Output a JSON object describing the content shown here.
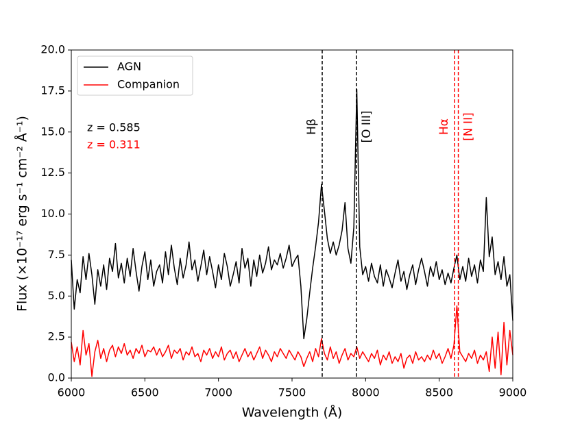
{
  "chart_data": {
    "type": "line",
    "xlabel": "Wavelength (Å)",
    "ylabel": "Flux (×10⁻¹⁷ erg s⁻¹ cm⁻² Å⁻¹)",
    "xlim": [
      6000,
      9000
    ],
    "ylim": [
      0,
      20
    ],
    "xticks": [
      6000,
      6500,
      7000,
      7500,
      8000,
      8500,
      9000
    ],
    "yticks": [
      {
        "value": 0,
        "label": "0.0"
      },
      2.5,
      {
        "value": 5,
        "label": "5.0"
      },
      7.5,
      {
        "value": 10,
        "label": "10.0"
      },
      12.5,
      {
        "value": 15,
        "label": "15.0"
      },
      17.5,
      {
        "value": 20,
        "label": "20.0"
      }
    ],
    "grid": false,
    "legend": "upper left",
    "x": [
      6000,
      6020,
      6040,
      6060,
      6080,
      6100,
      6120,
      6140,
      6160,
      6180,
      6200,
      6220,
      6240,
      6260,
      6280,
      6300,
      6320,
      6340,
      6360,
      6380,
      6400,
      6420,
      6440,
      6460,
      6480,
      6500,
      6520,
      6540,
      6560,
      6580,
      6600,
      6620,
      6640,
      6660,
      6680,
      6700,
      6720,
      6740,
      6760,
      6780,
      6800,
      6820,
      6840,
      6860,
      6880,
      6900,
      6920,
      6940,
      6960,
      6980,
      7000,
      7020,
      7040,
      7060,
      7080,
      7100,
      7120,
      7140,
      7160,
      7180,
      7200,
      7220,
      7240,
      7260,
      7280,
      7300,
      7320,
      7340,
      7360,
      7380,
      7400,
      7420,
      7440,
      7460,
      7480,
      7500,
      7520,
      7540,
      7560,
      7580,
      7600,
      7620,
      7640,
      7660,
      7680,
      7700,
      7720,
      7740,
      7760,
      7780,
      7800,
      7820,
      7840,
      7860,
      7880,
      7900,
      7920,
      7940,
      7960,
      7980,
      8000,
      8020,
      8040,
      8060,
      8080,
      8100,
      8120,
      8140,
      8160,
      8180,
      8200,
      8220,
      8240,
      8260,
      8280,
      8300,
      8320,
      8340,
      8360,
      8380,
      8400,
      8420,
      8440,
      8460,
      8480,
      8500,
      8520,
      8540,
      8560,
      8580,
      8600,
      8620,
      8640,
      8660,
      8680,
      8700,
      8720,
      8740,
      8760,
      8780,
      8800,
      8820,
      8840,
      8860,
      8880,
      8900,
      8920,
      8940,
      8960,
      8980,
      9000
    ],
    "series": [
      {
        "name": "AGN",
        "color": "#000000",
        "values": [
          7.2,
          4.2,
          6.0,
          5.2,
          7.4,
          6.0,
          7.6,
          6.3,
          4.5,
          6.6,
          5.6,
          6.9,
          5.4,
          7.3,
          6.5,
          8.2,
          6.1,
          7.0,
          5.8,
          7.3,
          6.2,
          7.9,
          6.5,
          5.3,
          6.8,
          7.7,
          6.0,
          7.2,
          5.6,
          6.5,
          6.9,
          5.8,
          7.7,
          6.3,
          8.1,
          6.7,
          5.7,
          7.3,
          6.1,
          6.9,
          8.3,
          6.6,
          7.2,
          5.9,
          6.8,
          7.8,
          6.3,
          7.4,
          6.5,
          5.5,
          6.9,
          6.0,
          7.6,
          6.8,
          5.6,
          6.3,
          7.1,
          5.8,
          7.9,
          6.7,
          7.3,
          5.6,
          7.2,
          6.2,
          7.5,
          6.4,
          7.0,
          8.0,
          6.6,
          7.2,
          6.9,
          7.6,
          6.7,
          7.3,
          8.1,
          6.8,
          7.2,
          7.5,
          5.6,
          2.4,
          3.6,
          5.2,
          6.7,
          8.0,
          9.5,
          11.8,
          10.2,
          8.5,
          7.6,
          8.3,
          7.5,
          8.1,
          9.0,
          10.7,
          7.9,
          7.0,
          9.2,
          17.6,
          8.0,
          6.3,
          6.8,
          5.9,
          7.0,
          6.2,
          5.8,
          6.9,
          5.6,
          6.6,
          6.1,
          5.5,
          6.4,
          7.2,
          5.9,
          6.5,
          5.4,
          6.3,
          6.9,
          5.7,
          6.6,
          7.3,
          6.5,
          5.6,
          6.8,
          6.2,
          7.1,
          6.0,
          6.6,
          5.7,
          6.4,
          5.8,
          6.7,
          7.5,
          6.0,
          6.8,
          5.9,
          7.3,
          6.2,
          6.9,
          5.8,
          7.2,
          6.5,
          11.0,
          7.4,
          8.6,
          6.3,
          7.1,
          6.0,
          7.4,
          5.6,
          6.3,
          3.5
        ]
      },
      {
        "name": "Companion",
        "color": "#ff0000",
        "values": [
          2.2,
          1.0,
          1.9,
          0.8,
          2.9,
          1.4,
          2.1,
          0.1,
          1.6,
          2.3,
          1.2,
          1.8,
          1.0,
          1.7,
          2.0,
          1.3,
          1.9,
          1.5,
          2.1,
          1.4,
          1.7,
          1.2,
          1.8,
          1.5,
          2.0,
          1.3,
          1.7,
          1.6,
          1.9,
          1.4,
          1.8,
          1.3,
          1.6,
          2.0,
          1.2,
          1.7,
          1.5,
          1.8,
          1.1,
          1.6,
          1.4,
          1.9,
          1.3,
          1.5,
          1.0,
          1.7,
          1.4,
          1.8,
          1.2,
          1.6,
          1.3,
          1.9,
          1.1,
          1.5,
          1.7,
          1.2,
          1.6,
          1.0,
          1.4,
          1.8,
          1.3,
          1.6,
          1.1,
          1.5,
          1.9,
          1.2,
          1.7,
          1.4,
          1.0,
          1.6,
          1.3,
          1.8,
          1.5,
          1.2,
          1.7,
          1.4,
          1.1,
          1.6,
          1.3,
          0.7,
          1.2,
          1.6,
          1.0,
          1.8,
          1.3,
          2.4,
          1.5,
          1.1,
          1.9,
          1.2,
          1.6,
          0.9,
          1.4,
          1.8,
          1.1,
          1.5,
          1.3,
          1.9,
          1.2,
          1.6,
          1.3,
          1.0,
          1.5,
          1.2,
          1.7,
          0.8,
          1.4,
          1.1,
          1.6,
          0.9,
          1.3,
          1.0,
          1.5,
          0.6,
          1.2,
          1.4,
          0.9,
          1.6,
          1.1,
          1.3,
          1.0,
          1.4,
          1.1,
          1.7,
          1.2,
          1.5,
          0.9,
          1.3,
          1.8,
          1.2,
          2.0,
          4.4,
          1.6,
          1.3,
          1.0,
          1.5,
          1.2,
          1.7,
          0.9,
          1.4,
          1.1,
          1.6,
          0.4,
          2.5,
          0.6,
          2.8,
          0.2,
          3.4,
          0.8,
          2.9,
          1.4
        ]
      }
    ],
    "vlines": [
      {
        "x": 7705,
        "color": "#000000",
        "label": "Hβ"
      },
      {
        "x": 7937,
        "color": "#000000",
        "label": "[O III]"
      },
      {
        "x": 8605,
        "color": "#ff0000",
        "label": "Hα"
      },
      {
        "x": 8630,
        "color": "#ff0000",
        "label": "[N II]"
      }
    ],
    "annotations": [
      {
        "text": "z = 0.585",
        "color": "#000000"
      },
      {
        "text": "z = 0.311",
        "color": "#ff0000"
      }
    ]
  }
}
